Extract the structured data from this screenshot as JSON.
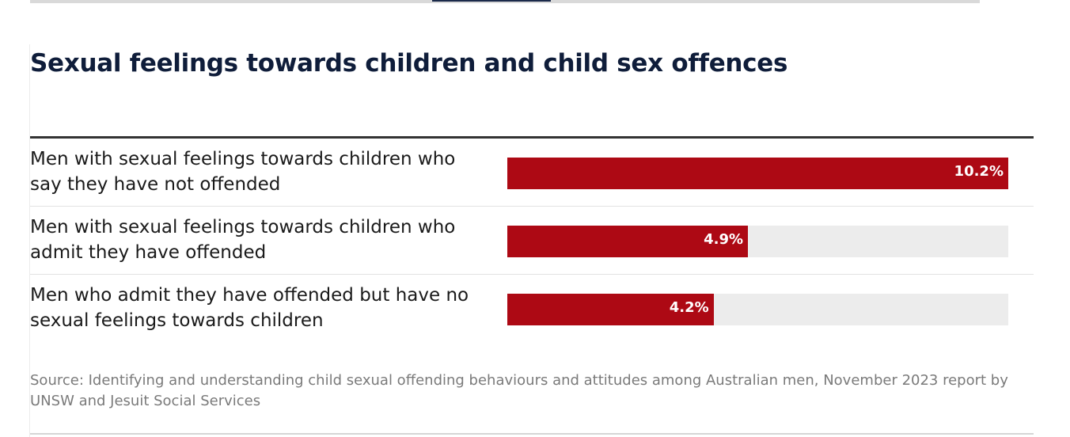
{
  "chart_data": {
    "type": "bar",
    "orientation": "horizontal",
    "title": "Sexual feelings towards children and child sex offences",
    "categories": [
      "Men with sexual feelings towards children who say they have not offended",
      "Men with sexual feelings towards children who admit they have offended",
      "Men who admit they have offended but have no sexual feelings towards children"
    ],
    "values": [
      10.2,
      4.9,
      4.2
    ],
    "value_labels": [
      "10.2%",
      "4.9%",
      "4.2%"
    ],
    "unit": "%",
    "xlim": [
      0,
      10.2
    ],
    "grid": false,
    "legend": "none",
    "source": "Source: Identifying and understanding child sexual offending behaviours and attitudes among Australian men, November 2023 report by UNSW and Jesuit Social Services"
  },
  "colors": {
    "bar": "#ad0914",
    "track": "#ececec",
    "title": "#0f1d3a",
    "source": "#7a7a7a"
  }
}
